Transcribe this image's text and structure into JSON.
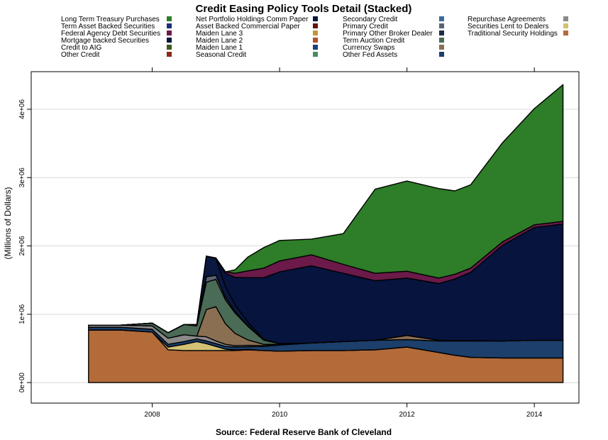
{
  "chart_data": {
    "type": "area",
    "title": "Credit Easing Policy Tools Detail (Stacked)",
    "source": "Source: Federal Reserve Bank of Cleveland",
    "ylabel": "(Millions of Dollars)",
    "xlabel": "",
    "xlim": [
      2006.1,
      2014.7
    ],
    "ylim": [
      -300000,
      4550000
    ],
    "x_ticks": [
      2008,
      2010,
      2012,
      2014
    ],
    "y_ticks": [
      {
        "value": 0,
        "label": "0e+00"
      },
      {
        "value": 1000000,
        "label": "1e+06"
      },
      {
        "value": 2000000,
        "label": "2e+06"
      },
      {
        "value": 3000000,
        "label": "3e+06"
      },
      {
        "value": 4000000,
        "label": "4e+06"
      }
    ],
    "grid": true,
    "legend_position": "top",
    "legend": [
      [
        "Long Term Treasury Purchases",
        "Term Asset Backed Securities",
        "Federal Agency Debt Securities",
        "Mortgage backed Securities",
        "Credit to AIG",
        "Other Credit"
      ],
      [
        "Net Portfolio Holdings Comm Paper",
        "Asset Backed Commercial Paper",
        "Maiden Lane 3",
        "Maiden Lane 2",
        "Maiden Lane 1",
        "Seasonal Credit"
      ],
      [
        "Secondary Credit",
        "Primary Credit",
        "Primary Other Broker Dealer",
        "Term Auction Credit",
        "Currency Swaps",
        "Other Fed Assets"
      ],
      [
        "Repurchase Agreements",
        "Securities Lent to Dealers",
        "Traditional Security Holdings"
      ]
    ],
    "x": [
      2007.0,
      2007.5,
      2008.0,
      2008.25,
      2008.5,
      2008.7,
      2008.85,
      2009.0,
      2009.15,
      2009.3,
      2009.5,
      2009.75,
      2010.0,
      2010.5,
      2011.0,
      2011.5,
      2012.0,
      2012.5,
      2012.75,
      2013.0,
      2013.5,
      2014.0,
      2014.45
    ],
    "series": [
      {
        "name": "Traditional Security Holdings",
        "color": "#b36b3a",
        "values": [
          770000,
          770000,
          740000,
          480000,
          470000,
          470000,
          470000,
          470000,
          470000,
          470000,
          480000,
          470000,
          460000,
          470000,
          470000,
          480000,
          520000,
          440000,
          400000,
          370000,
          360000,
          360000,
          360000
        ]
      },
      {
        "name": "Securities Lent to Dealers",
        "color": "#d2c175",
        "values": [
          0,
          0,
          0,
          40000,
          90000,
          130000,
          100000,
          60000,
          20000,
          10000,
          5000,
          0,
          0,
          0,
          0,
          0,
          0,
          0,
          0,
          0,
          0,
          0,
          0
        ]
      },
      {
        "name": "Other Fed Assets",
        "color": "#1c3f6b",
        "values": [
          40000,
          40000,
          40000,
          40000,
          40000,
          40000,
          40000,
          40000,
          40000,
          40000,
          40000,
          60000,
          90000,
          110000,
          130000,
          140000,
          110000,
          170000,
          210000,
          240000,
          250000,
          260000,
          260000
        ]
      },
      {
        "name": "Repurchase Agreements",
        "color": "#8a8a8a",
        "values": [
          30000,
          30000,
          50000,
          90000,
          100000,
          40000,
          60000,
          40000,
          30000,
          20000,
          20000,
          10000,
          5000,
          0,
          0,
          0,
          0,
          0,
          0,
          0,
          0,
          0,
          0
        ]
      },
      {
        "name": "Currency Swaps",
        "color": "#8b6f52",
        "values": [
          0,
          0,
          0,
          0,
          0,
          0,
          400000,
          500000,
          300000,
          180000,
          80000,
          20000,
          5000,
          0,
          0,
          0,
          60000,
          10000,
          5000,
          5000,
          0,
          0,
          0
        ]
      },
      {
        "name": "Term Auction Credit",
        "color": "#4a6b56",
        "values": [
          0,
          0,
          40000,
          80000,
          150000,
          150000,
          400000,
          400000,
          350000,
          300000,
          200000,
          60000,
          10000,
          0,
          0,
          0,
          0,
          0,
          0,
          0,
          0,
          0,
          0
        ]
      },
      {
        "name": "Primary Credit",
        "color": "#5c6370",
        "values": [
          0,
          0,
          0,
          0,
          0,
          20000,
          80000,
          60000,
          40000,
          20000,
          10000,
          5000,
          0,
          0,
          0,
          0,
          0,
          0,
          0,
          0,
          0,
          0,
          0
        ]
      },
      {
        "name": "Net Portfolio Holdings Comm Paper",
        "color": "#0b1840",
        "values": [
          0,
          0,
          0,
          0,
          0,
          0,
          300000,
          250000,
          150000,
          100000,
          50000,
          10000,
          0,
          0,
          0,
          0,
          0,
          0,
          0,
          0,
          0,
          0,
          0
        ]
      },
      {
        "name": "Mortgage backed Securities",
        "color": "#06143e",
        "values": [
          0,
          0,
          0,
          0,
          0,
          0,
          0,
          0,
          200000,
          400000,
          650000,
          900000,
          1050000,
          1130000,
          1000000,
          870000,
          840000,
          830000,
          900000,
          1000000,
          1400000,
          1650000,
          1700000
        ]
      },
      {
        "name": "Federal Agency Debt Securities",
        "color": "#6b1a4a",
        "values": [
          0,
          0,
          0,
          0,
          0,
          0,
          0,
          5000,
          20000,
          60000,
          100000,
          140000,
          160000,
          160000,
          130000,
          110000,
          100000,
          80000,
          70000,
          60000,
          50000,
          40000,
          40000
        ]
      },
      {
        "name": "Long Term Treasury Purchases",
        "color": "#2e7d28",
        "values": [
          0,
          0,
          0,
          0,
          0,
          0,
          0,
          0,
          0,
          50000,
          200000,
          300000,
          300000,
          230000,
          450000,
          1230000,
          1320000,
          1310000,
          1220000,
          1220000,
          1450000,
          1700000,
          2000000
        ]
      }
    ]
  }
}
